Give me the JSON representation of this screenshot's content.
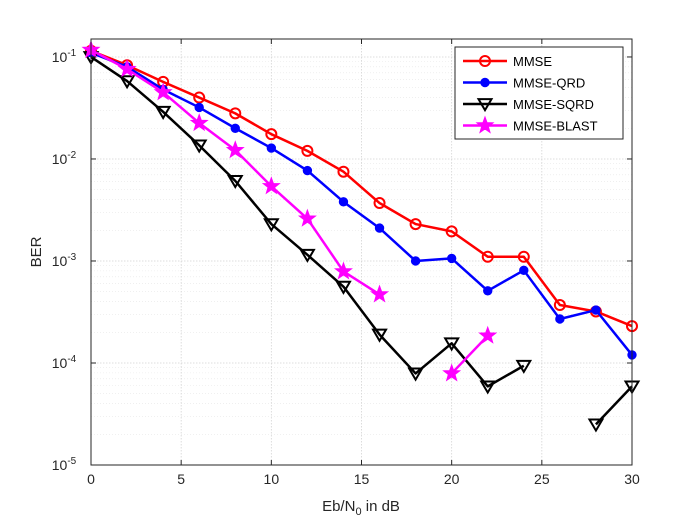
{
  "chart_data": {
    "type": "line",
    "title": "",
    "xlabel": {
      "main": "Eb/N",
      "sub": "0",
      "tail": " in dB"
    },
    "ylabel": "BER",
    "xlim": [
      0,
      30
    ],
    "ylim": [
      1e-05,
      0.15
    ],
    "yscale": "log",
    "grid": true,
    "minor_grid": true,
    "legend_position": "top-right",
    "xticks": [
      0,
      5,
      10,
      15,
      20,
      25,
      30
    ],
    "yticks": [
      {
        "value": 1e-05,
        "base": "10",
        "exp": "-5"
      },
      {
        "value": 0.0001,
        "base": "10",
        "exp": "-4"
      },
      {
        "value": 0.001,
        "base": "10",
        "exp": "-3"
      },
      {
        "value": 0.01,
        "base": "10",
        "exp": "-2"
      },
      {
        "value": 0.1,
        "base": "10",
        "exp": "-1"
      }
    ],
    "series": [
      {
        "name": "MMSE",
        "color": "#ff0000",
        "marker": "circle",
        "x": [
          0,
          2,
          4,
          6,
          8,
          10,
          12,
          14,
          16,
          18,
          20,
          22,
          24,
          26,
          28,
          30
        ],
        "y": [
          0.115,
          0.083,
          0.057,
          0.04,
          0.028,
          0.0175,
          0.012,
          0.0075,
          0.0037,
          0.0023,
          0.00195,
          0.0011,
          0.0011,
          0.00037,
          0.00032,
          0.00023
        ]
      },
      {
        "name": "MMSE-QRD",
        "color": "#0000ff",
        "marker": "dot",
        "x": [
          0,
          2,
          4,
          6,
          8,
          10,
          12,
          14,
          16,
          18,
          20,
          22,
          24,
          26,
          28,
          30
        ],
        "y": [
          0.11,
          0.08,
          0.048,
          0.032,
          0.02,
          0.0128,
          0.0077,
          0.0038,
          0.0021,
          0.001,
          0.00106,
          0.00051,
          0.00081,
          0.00027,
          0.00033,
          0.00012
        ]
      },
      {
        "name": "MMSE-SQRD",
        "color": "#000000",
        "marker": "triangle-down",
        "x": [
          0,
          2,
          4,
          6,
          8,
          10,
          12,
          14,
          16,
          18,
          20,
          22,
          24,
          null,
          28,
          30
        ],
        "y": [
          0.1,
          0.058,
          0.029,
          0.0136,
          0.0061,
          0.0023,
          0.00115,
          0.00056,
          0.00019,
          7.9e-05,
          0.000156,
          5.9e-05,
          9.4e-05,
          null,
          2.5e-05,
          5.9e-05
        ]
      },
      {
        "name": "MMSE-BLAST",
        "color": "#ff00ff",
        "marker": "star",
        "x": [
          0,
          2,
          4,
          6,
          8,
          10,
          12,
          14,
          16,
          null,
          20,
          22
        ],
        "y": [
          0.117,
          0.076,
          0.045,
          0.0225,
          0.0122,
          0.0054,
          0.0026,
          0.00079,
          0.00047,
          null,
          7.9e-05,
          0.000185
        ]
      }
    ]
  }
}
